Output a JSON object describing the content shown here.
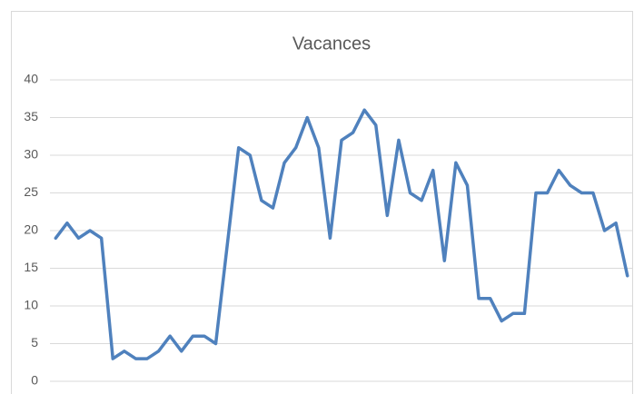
{
  "chart_data": {
    "type": "line",
    "title": "Vacances",
    "values": [
      19,
      21,
      19,
      20,
      19,
      3,
      4,
      3,
      3,
      4,
      6,
      4,
      6,
      6,
      5,
      18,
      31,
      30,
      24,
      23,
      29,
      31,
      35,
      31,
      19,
      32,
      33,
      36,
      34,
      22,
      32,
      25,
      24,
      28,
      16,
      29,
      26,
      11,
      11,
      8,
      9,
      9,
      25,
      25,
      28,
      26,
      25,
      25,
      20,
      21,
      14
    ],
    "color": "#4f81bd",
    "ylim": [
      0,
      40
    ],
    "yticks": [
      0,
      5,
      10,
      15,
      20,
      25,
      30,
      35,
      40
    ],
    "grid": true
  }
}
